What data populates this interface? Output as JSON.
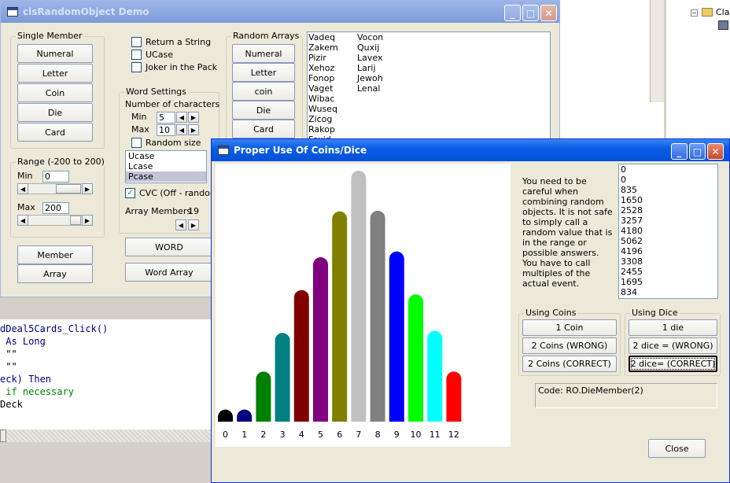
{
  "background_app": {
    "code_lines": [
      {
        "text": "dDeal5Cards_Click()",
        "color": "#000080"
      },
      {
        "text": " As Long",
        "color": "#000080"
      },
      {
        "text": " \"\"",
        "color": "#000000"
      },
      {
        "text": " \"\"",
        "color": "#000000"
      },
      {
        "text": "eck) Then",
        "color": "#000080"
      },
      {
        "text": " if necessary",
        "color": "#008000"
      },
      {
        "text": "Deck",
        "color": "#000000"
      }
    ],
    "tree_label": "Cla"
  },
  "demo_window": {
    "title": "clsRandomObject Demo",
    "single_member": {
      "legend": "Single Member",
      "buttons": [
        "Numeral",
        "Letter",
        "Coin",
        "Die",
        "Card"
      ]
    },
    "checks": {
      "return_string": "Return a String",
      "ucase": "UCase",
      "joker": "Joker in the Pack"
    },
    "range": {
      "legend": "Range (-200 to 200)",
      "min_label": "Min",
      "min_value": "0",
      "max_label": "Max",
      "max_value": "200"
    },
    "member_button": "Member",
    "array_button": "Array",
    "word_settings": {
      "legend": "Word Settings",
      "num_chars_label": "Number of characters",
      "min_label": "Min",
      "min_value": "5",
      "max_label": "Max",
      "max_value": "10",
      "random_size": "Random size",
      "case_options": [
        "Ucase",
        "Lcase",
        "Pcase"
      ],
      "selected_case": "Pcase",
      "cvc_label": "CVC (Off - random)",
      "cvc_checked": true,
      "array_members_label": "Array Members",
      "array_members_value": "19"
    },
    "word_button": "WORD",
    "word_array_button": "Word Array",
    "random_arrays": {
      "legend": "Random Arrays",
      "buttons": [
        "Numeral",
        "Letter",
        "coin",
        "Die",
        "Card"
      ]
    },
    "output_col1": [
      "Vadeq",
      "Zakem",
      "Pizir",
      "Xehoz",
      "Fonop",
      "Vaget",
      "Wibac",
      "Wuseq",
      "Zicog",
      "Rakop",
      "Fexid"
    ],
    "output_col2": [
      "Vocon",
      "Quxij",
      "Lavex",
      "Larij",
      "Jewoh",
      "Lenal"
    ]
  },
  "coins_window": {
    "title": "Proper Use Of Coins/Dice",
    "explanation": "You need to be careful when combining random objects. It is not safe to simply call a random value that is in the range or possible answers. You have to call multiples of the actual event.",
    "results": [
      "0",
      "0",
      "835",
      "1650",
      "2528",
      "3257",
      "4180",
      "5062",
      "4196",
      "3308",
      "2455",
      "1695",
      "834"
    ],
    "using_coins": {
      "legend": "Using Coins",
      "buttons": [
        "1 Coin",
        "2 Coins (WRONG)",
        "2 Coins  (CORRECT)"
      ]
    },
    "using_dice": {
      "legend": "Using Dice",
      "buttons": [
        "1 die",
        "2 dice =  (WRONG)",
        "2 dice= (CORRECT)"
      ],
      "selected": "2 dice= (CORRECT)"
    },
    "code_text": "Code: RO.DieMember(2)",
    "close_button": "Close"
  },
  "chart_data": {
    "type": "bar",
    "categories": [
      "0",
      "1",
      "2",
      "3",
      "4",
      "5",
      "6",
      "7",
      "8",
      "9",
      "10",
      "11",
      "12"
    ],
    "values": [
      13,
      13,
      70,
      124,
      184,
      230,
      294,
      351,
      295,
      238,
      178,
      127,
      70
    ],
    "colors": [
      "#000000",
      "#000080",
      "#008000",
      "#008080",
      "#800000",
      "#800080",
      "#808000",
      "#c0c0c0",
      "#808080",
      "#0000ff",
      "#00ff00",
      "#00ffff",
      "#ff0000"
    ],
    "ylim": [
      0,
      351
    ],
    "grid": false,
    "legend": "none"
  }
}
